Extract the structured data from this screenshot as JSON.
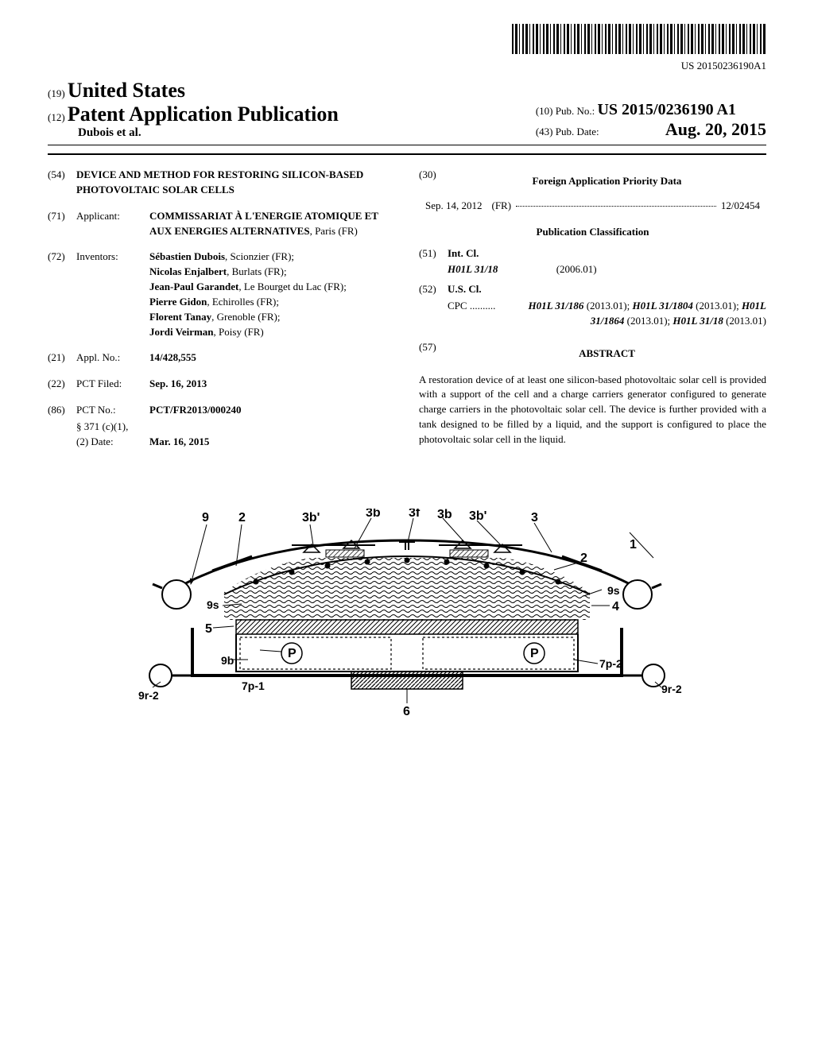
{
  "barcode_number": "US 20150236190A1",
  "header": {
    "country_code": "(19)",
    "country": "United States",
    "pub_code": "(12)",
    "pub_title": "Patent Application Publication",
    "author": "Dubois et al.",
    "pubnum_code": "(10)",
    "pubnum_label": "Pub. No.:",
    "pubnum_value": "US 2015/0236190 A1",
    "pubdate_code": "(43)",
    "pubdate_label": "Pub. Date:",
    "pubdate_value": "Aug. 20, 2015"
  },
  "left": {
    "title_code": "(54)",
    "title": "DEVICE AND METHOD FOR RESTORING SILICON-BASED PHOTOVOLTAIC SOLAR CELLS",
    "applicant_code": "(71)",
    "applicant_label": "Applicant:",
    "applicant": "COMMISSARIAT À L'ENERGIE ATOMIQUE ET AUX ENERGIES ALTERNATIVES",
    "applicant_loc": ", Paris (FR)",
    "inventors_code": "(72)",
    "inventors_label": "Inventors:",
    "inventors": [
      {
        "name": "Sébastien Dubois",
        "loc": ", Scionzier (FR);"
      },
      {
        "name": "Nicolas Enjalbert",
        "loc": ", Burlats (FR);"
      },
      {
        "name": "Jean-Paul Garandet",
        "loc": ", Le Bourget du Lac (FR);"
      },
      {
        "name": "Pierre Gidon",
        "loc": ", Echirolles (FR);"
      },
      {
        "name": "Florent Tanay",
        "loc": ", Grenoble (FR);"
      },
      {
        "name": "Jordi Veirman",
        "loc": ", Poisy (FR)"
      }
    ],
    "applno_code": "(21)",
    "applno_label": "Appl. No.:",
    "applno": "14/428,555",
    "pctfiled_code": "(22)",
    "pctfiled_label": "PCT Filed:",
    "pctfiled": "Sep. 16, 2013",
    "pctno_code": "(86)",
    "pctno_label": "PCT No.:",
    "pctno": "PCT/FR2013/000240",
    "s371_label": "§ 371 (c)(1),",
    "s371_date_label": "(2) Date:",
    "s371_date": "Mar. 16, 2015"
  },
  "right": {
    "foreign_code": "(30)",
    "foreign_heading": "Foreign Application Priority Data",
    "foreign_date": "Sep. 14, 2012",
    "foreign_country": "(FR)",
    "foreign_num": "12/02454",
    "pubclass_heading": "Publication Classification",
    "intcl_code": "(51)",
    "intcl_label": "Int. Cl.",
    "intcl_class": "H01L 31/18",
    "intcl_year": "(2006.01)",
    "uscl_code": "(52)",
    "uscl_label": "U.S. Cl.",
    "cpc_label": "CPC ..........",
    "cpc_text": "H01L 31/186 (2013.01); H01L 31/1804 (2013.01); H01L 31/1864 (2013.01); H01L 31/18 (2013.01)",
    "abstract_code": "(57)",
    "abstract_heading": "ABSTRACT",
    "abstract_text": "A restoration device of at least one silicon-based photovoltaic solar cell is provided with a support of the cell and a charge carriers generator configured to generate charge carriers in the photovoltaic solar cell. The device is further provided with a tank designed to be filled by a liquid, and the support is configured to place the photovoltaic solar cell in the liquid."
  },
  "figure": {
    "labels": [
      "9",
      "2",
      "3b'",
      "3b",
      "3f",
      "3b",
      "3b'",
      "3",
      "1",
      "9s",
      "9s",
      "2",
      "4",
      "5",
      "9b",
      "P",
      "P",
      "7p-1",
      "7p-2",
      "9r-2",
      "9r-2",
      "6"
    ]
  }
}
